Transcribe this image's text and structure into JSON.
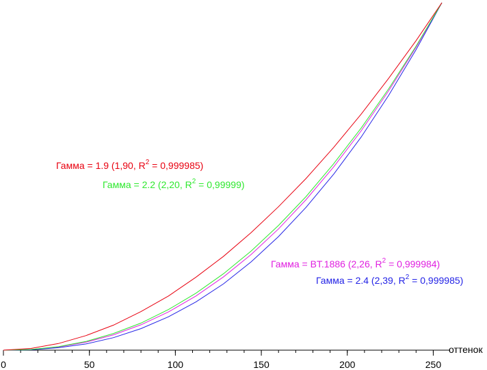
{
  "chart_data": {
    "type": "line",
    "x": [
      0,
      16,
      32,
      48,
      64,
      80,
      96,
      112,
      128,
      144,
      160,
      176,
      192,
      208,
      224,
      240,
      255
    ],
    "xlim": [
      0,
      255
    ],
    "ylim": [
      0,
      1
    ],
    "xticks": [
      0,
      50,
      100,
      150,
      200,
      250
    ],
    "xminorticks": [
      0,
      10,
      20,
      30,
      40,
      50,
      60,
      70,
      80,
      90,
      100,
      110,
      120,
      130,
      140,
      150,
      160,
      170,
      180,
      190,
      200,
      210,
      220,
      230,
      240,
      250
    ],
    "xlabel": "оттенок",
    "series": [
      {
        "color": "#e8000f",
        "label": [
          "Гамма = 1.9 (1,90, R",
          "2",
          " = 0,999985)"
        ],
        "values": [
          0,
          0.005,
          0.019,
          0.042,
          0.072,
          0.111,
          0.156,
          0.21,
          0.27,
          0.338,
          0.413,
          0.494,
          0.583,
          0.679,
          0.782,
          0.891,
          1
        ]
      },
      {
        "color": "#2ee82e",
        "label": [
          "Гамма = 2.2 (2,20, R",
          "2",
          " = 0,99999)"
        ],
        "values": [
          0,
          0.002,
          0.01,
          0.025,
          0.048,
          0.078,
          0.117,
          0.164,
          0.22,
          0.285,
          0.359,
          0.442,
          0.536,
          0.639,
          0.752,
          0.875,
          1
        ]
      },
      {
        "color": "#e020e0",
        "label": [
          "Гамма = BT.1886 (2,26, R",
          "2",
          " = 0,999984)"
        ],
        "values": [
          0,
          0.002,
          0.009,
          0.023,
          0.044,
          0.073,
          0.11,
          0.156,
          0.211,
          0.275,
          0.349,
          0.433,
          0.527,
          0.631,
          0.746,
          0.872,
          1
        ]
      },
      {
        "color": "#2323e6",
        "label": [
          "Гамма = 2.4 (2,39, R",
          "2",
          " = 0,999985)"
        ],
        "values": [
          0,
          0.001,
          0.007,
          0.018,
          0.036,
          0.062,
          0.096,
          0.139,
          0.191,
          0.254,
          0.327,
          0.411,
          0.506,
          0.613,
          0.733,
          0.865,
          1
        ]
      }
    ]
  }
}
